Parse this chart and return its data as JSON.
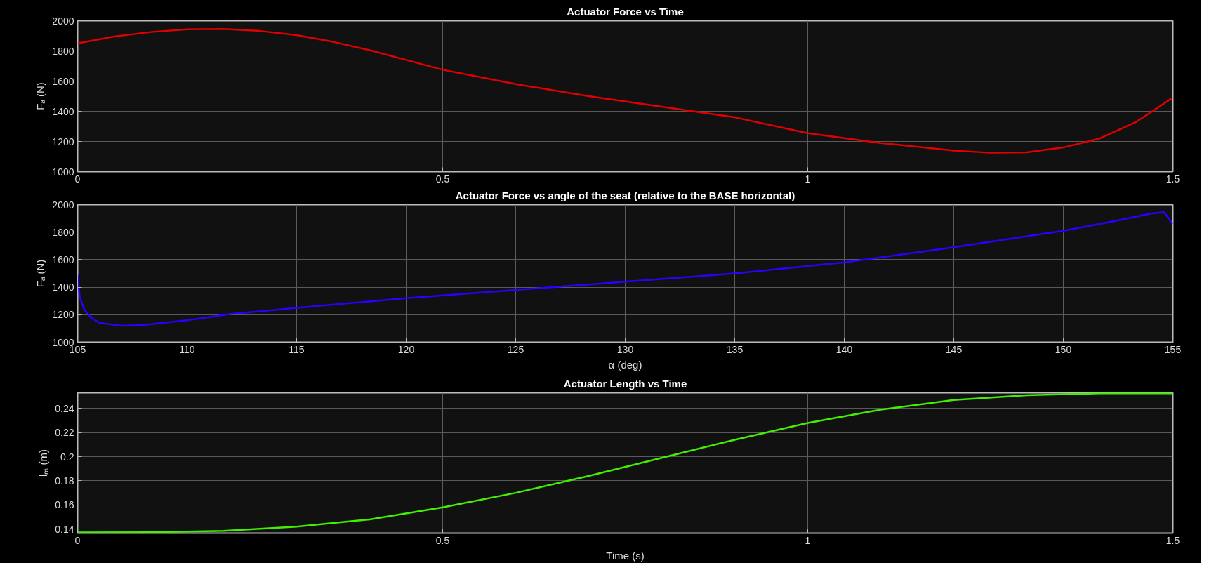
{
  "chart_data": [
    {
      "type": "line",
      "title": "Actuator Force vs Time",
      "ylabel": "Fₐ (N)",
      "xlim": [
        0,
        1.5
      ],
      "xticks": [
        0,
        0.5,
        1,
        1.5
      ],
      "ylim": [
        1000,
        2000
      ],
      "yticks": [
        1000,
        1200,
        1400,
        1600,
        1800,
        2000
      ],
      "grid": true,
      "line_style": "solid",
      "series": [
        {
          "color": "#e00000",
          "x": [
            0,
            0.05,
            0.1,
            0.15,
            0.2,
            0.25,
            0.3,
            0.35,
            0.4,
            0.45,
            0.5,
            0.6,
            0.7,
            0.8,
            0.9,
            1.0,
            1.1,
            1.2,
            1.25,
            1.3,
            1.35,
            1.4,
            1.45,
            1.5
          ],
          "values": [
            1850,
            1895,
            1925,
            1943,
            1945,
            1932,
            1905,
            1860,
            1805,
            1740,
            1675,
            1580,
            1500,
            1430,
            1360,
            1255,
            1190,
            1140,
            1125,
            1128,
            1160,
            1220,
            1330,
            1490
          ]
        }
      ]
    },
    {
      "type": "line",
      "title": "Actuator Force vs angle of the seat (relative to the BASE horizontal)",
      "xlabel": "α (deg)",
      "ylabel": "Fₐ (N)",
      "xlim": [
        105,
        155
      ],
      "xticks": [
        105,
        110,
        115,
        120,
        125,
        130,
        135,
        140,
        145,
        150,
        155
      ],
      "ylim": [
        1000,
        2000
      ],
      "yticks": [
        1000,
        1200,
        1400,
        1600,
        1800,
        2000
      ],
      "grid": true,
      "line_style": "solid",
      "series": [
        {
          "color": "#2a00ff",
          "x": [
            105,
            105.1,
            105.3,
            105.6,
            106,
            107,
            108,
            110,
            112,
            115,
            120,
            125,
            130,
            135,
            140,
            145,
            150,
            152,
            154,
            154.6,
            155
          ],
          "values": [
            1490,
            1330,
            1240,
            1180,
            1140,
            1120,
            1125,
            1160,
            1205,
            1250,
            1320,
            1380,
            1440,
            1500,
            1580,
            1690,
            1810,
            1870,
            1935,
            1945,
            1860
          ]
        }
      ]
    },
    {
      "type": "line",
      "title": "Actuator Length vs Time",
      "xlabel": "Time (s)",
      "ylabel": "lₘ (m)",
      "xlim": [
        0,
        1.5
      ],
      "xticks": [
        0,
        0.5,
        1,
        1.5
      ],
      "ylim": [
        0.1366,
        0.253
      ],
      "yticks": [
        0.14,
        0.16,
        0.18,
        0.2,
        0.22,
        0.24
      ],
      "grid": true,
      "line_style": "solid",
      "series": [
        {
          "color": "#44ee00",
          "x": [
            0,
            0.1,
            0.2,
            0.3,
            0.4,
            0.5,
            0.6,
            0.7,
            0.8,
            0.9,
            1.0,
            1.1,
            1.2,
            1.3,
            1.4,
            1.5
          ],
          "values": [
            0.1372,
            0.1373,
            0.1385,
            0.142,
            0.148,
            0.158,
            0.17,
            0.184,
            0.199,
            0.214,
            0.228,
            0.239,
            0.247,
            0.251,
            0.2525,
            0.2525
          ]
        }
      ]
    }
  ]
}
